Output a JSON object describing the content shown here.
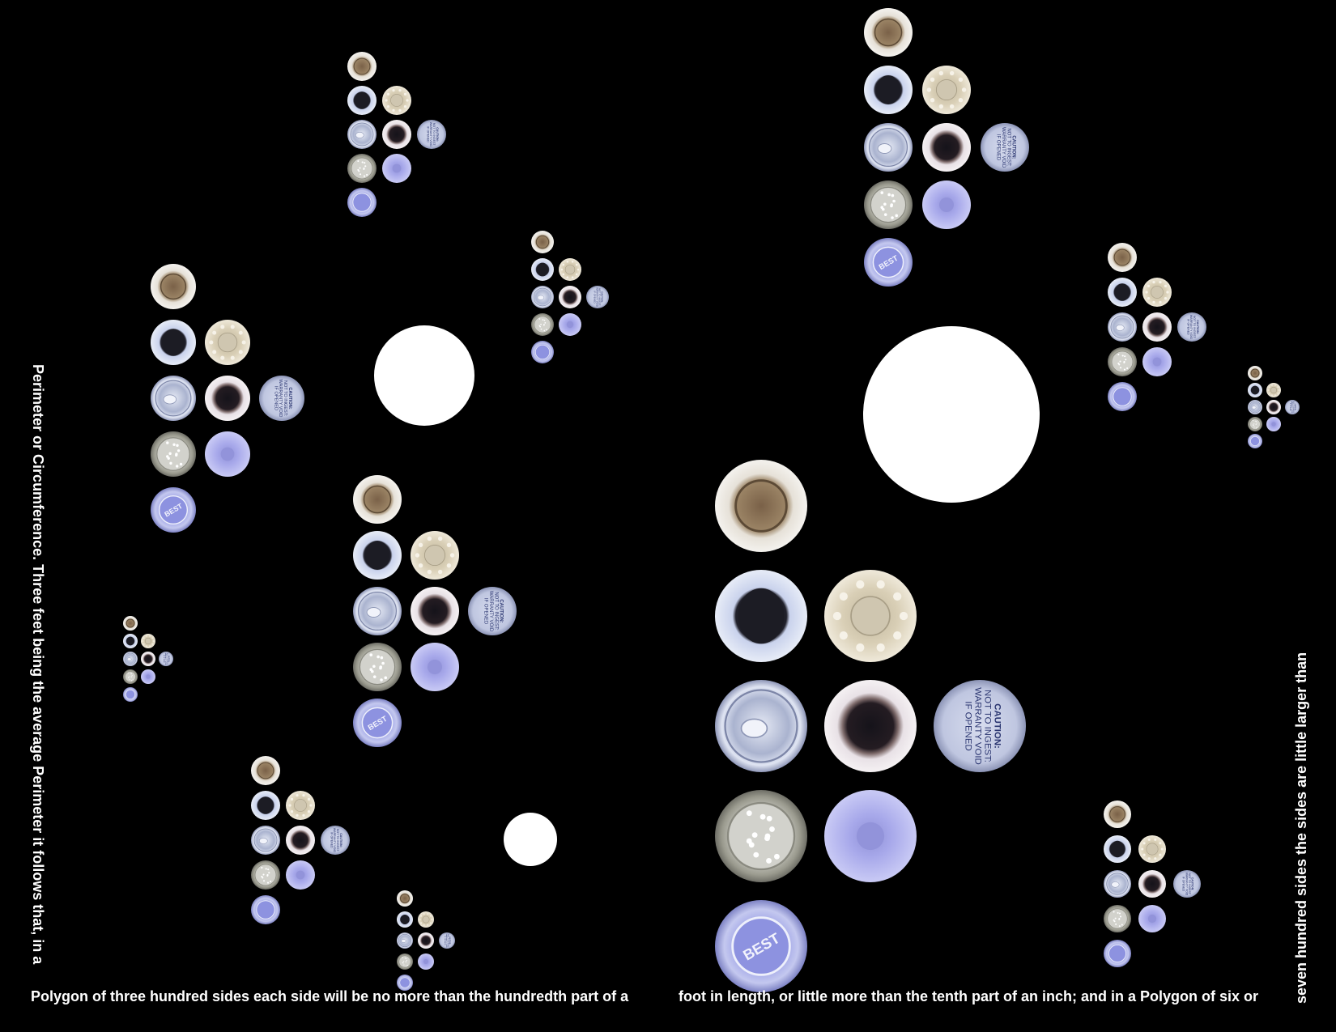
{
  "text": {
    "left_vertical": "Perimeter or Circumference. Three feet being the average Perimeter it follows that, in a",
    "bottom_1": "Polygon of three hundred sides each side will be no more than the hundredth part of a",
    "bottom_2": "foot in length, or little more than the tenth part of an inch; and in a Polygon of six or",
    "right_vertical": "seven hundred sides the sides are little larger than"
  },
  "cap_labels": {
    "caution_line1": "CAUTION:",
    "caution_line2": "NOT TO INGEST:",
    "caution_line3": "WARRANTY VOID",
    "caution_line4": "IF OPENED",
    "best_label": "BEST"
  },
  "colors": {
    "background": "#000000",
    "text": "#ffffff",
    "white_disc": "#ffffff",
    "blue_cap": "#8c8fe0",
    "lavender_cup": "#b7b8ef",
    "silver": "#c7ccdf",
    "cream": "#d8cfb8",
    "brown": "#8a6f52"
  }
}
